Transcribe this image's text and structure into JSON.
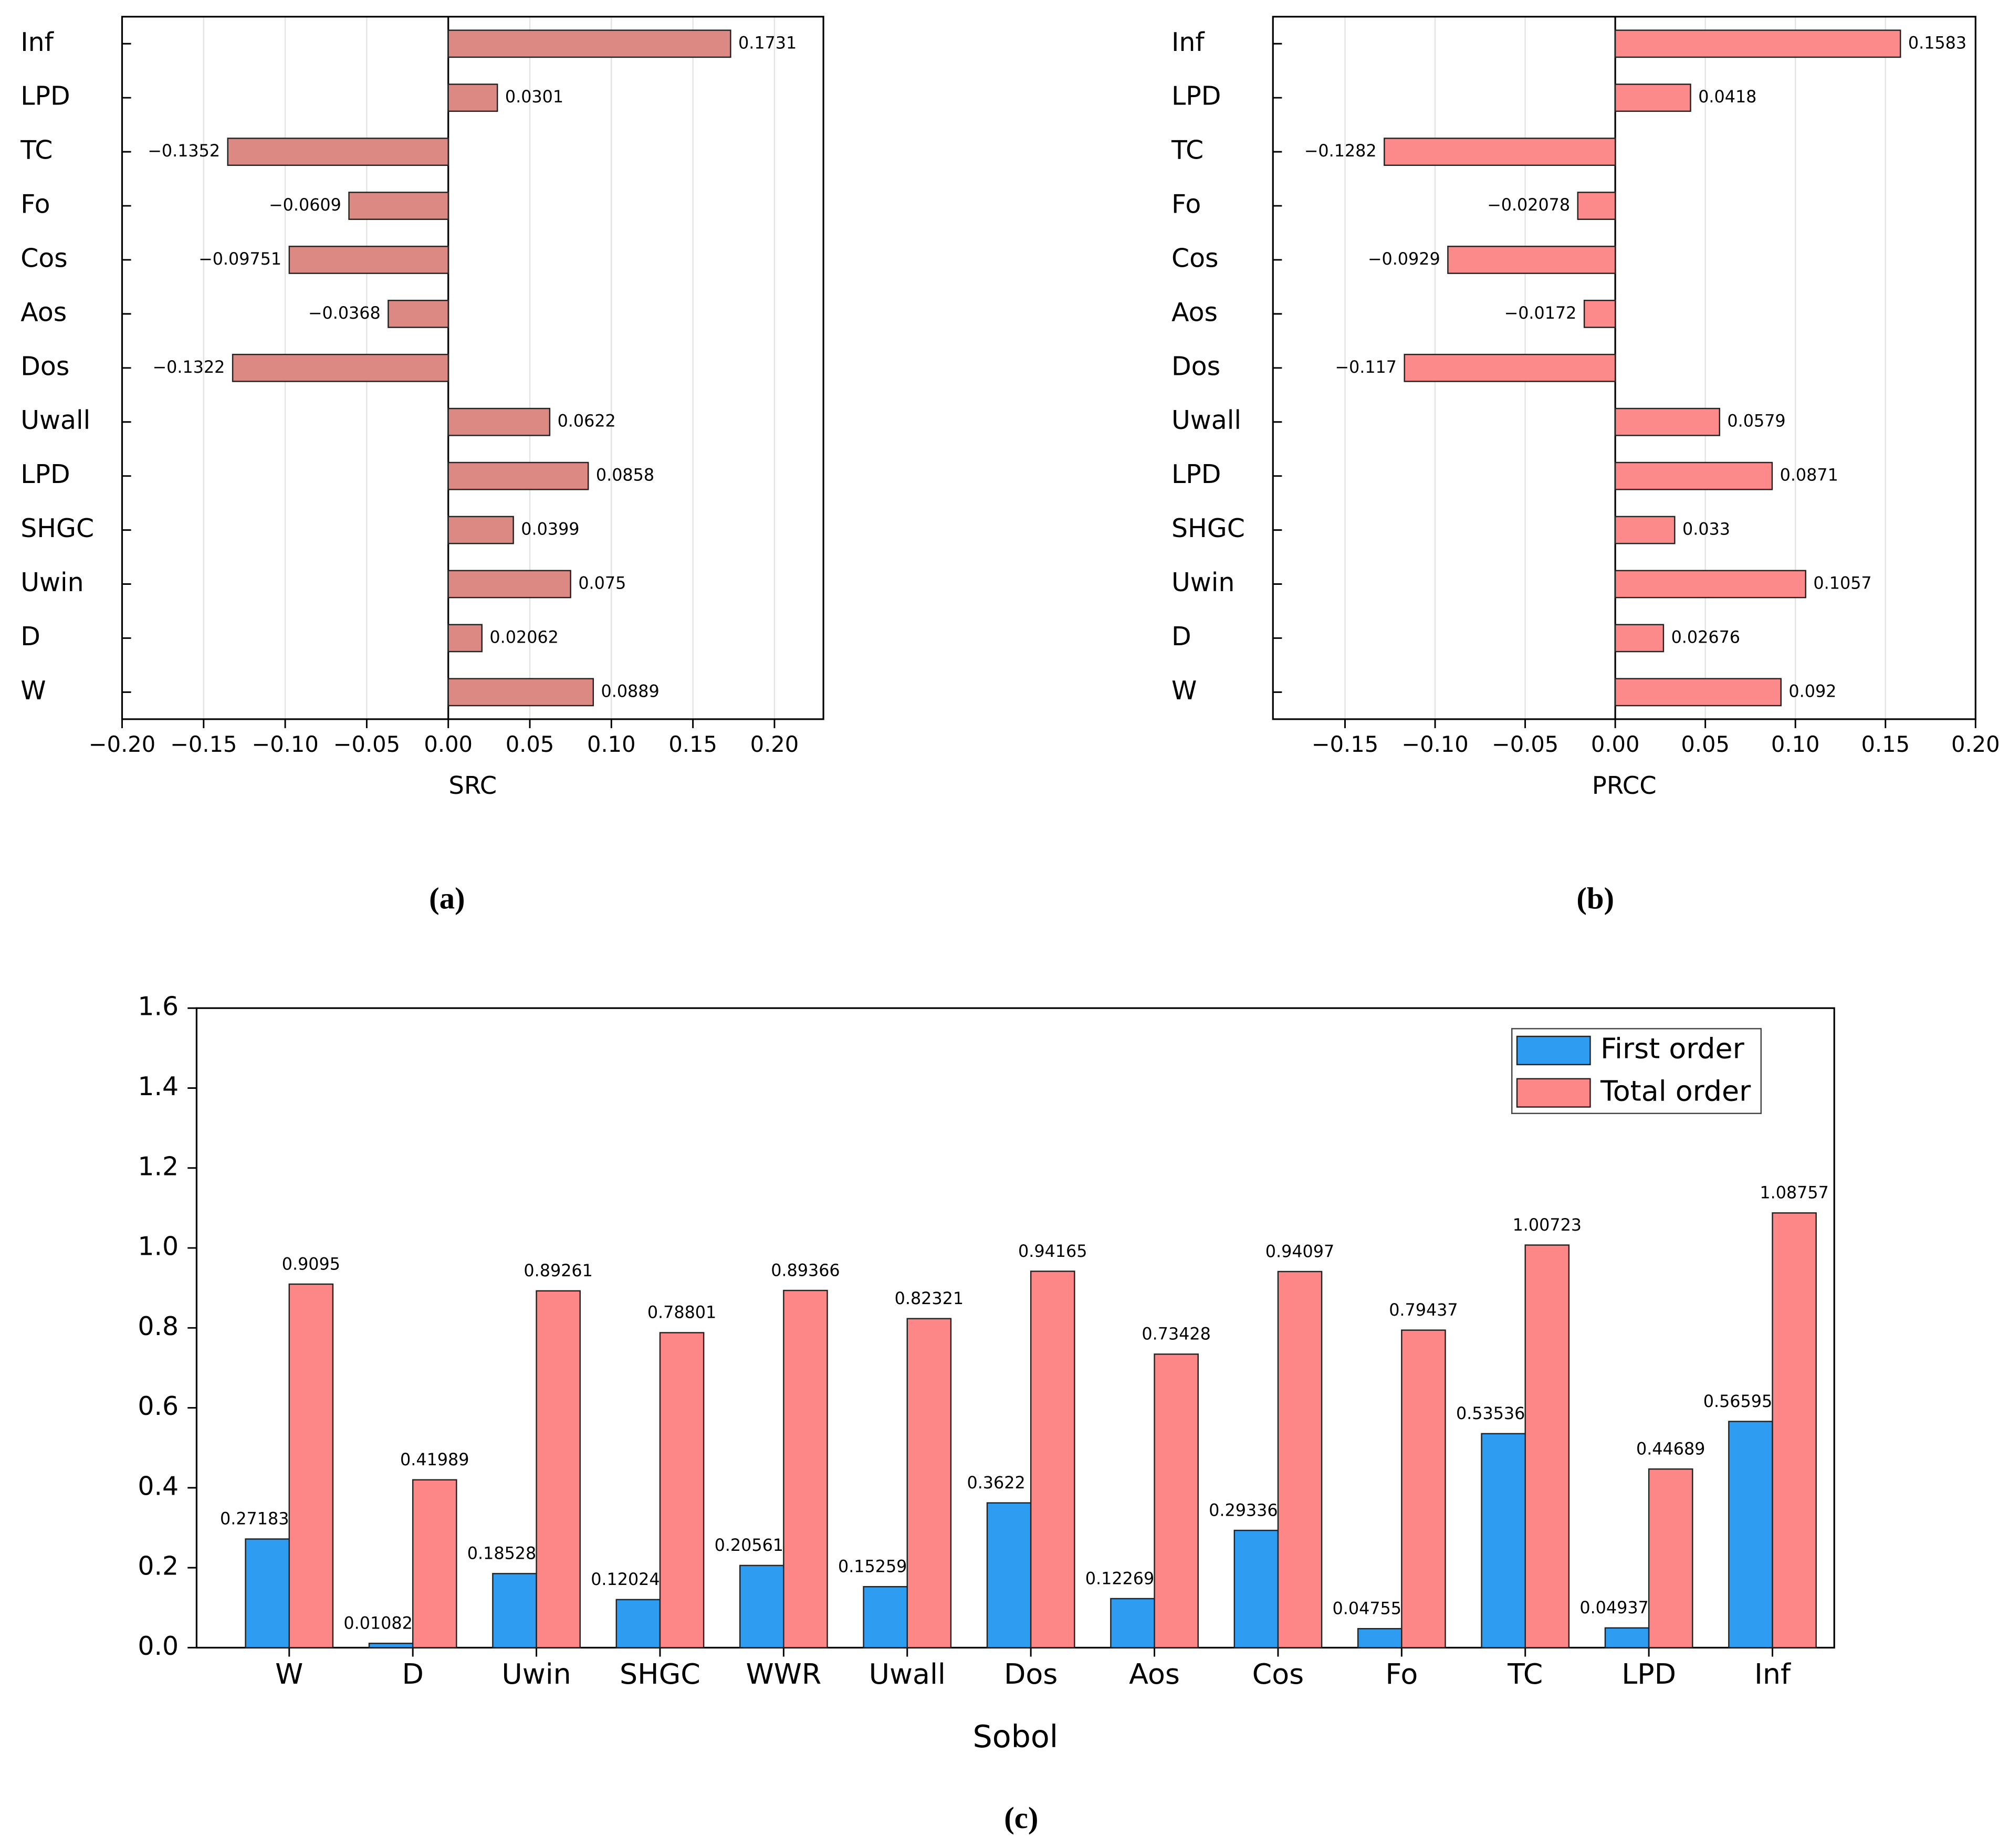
{
  "chart_data": [
    {
      "type": "bar",
      "orientation": "horizontal",
      "caption": "(a)",
      "x_label": "SRC",
      "color": "#dd8983",
      "grid": true,
      "categories": [
        "Inf",
        "LPD",
        "TC",
        "Fo",
        "Cos",
        "Aos",
        "Dos",
        "Uwall",
        "LPD",
        "SHGC",
        "Uwin",
        "D",
        "W"
      ],
      "values": [
        0.1731,
        0.0301,
        -0.1352,
        -0.0609,
        -0.09751,
        -0.0368,
        -0.1322,
        0.0622,
        0.0858,
        0.0399,
        0.075,
        0.02062,
        0.0889
      ],
      "value_labels": [
        "0.1731",
        "0.0301",
        "−0.1352",
        "−0.0609",
        "−0.09751",
        "−0.0368",
        "−0.1322",
        "0.0622",
        "0.0858",
        "0.0399",
        "0.075",
        "0.02062",
        "0.0889"
      ],
      "xlim": [
        -0.2,
        0.23
      ],
      "xticks": [
        {
          "value": -0.2,
          "label": "−0.20"
        },
        {
          "value": -0.15,
          "label": "−0.15"
        },
        {
          "value": -0.1,
          "label": "−0.10"
        },
        {
          "value": -0.05,
          "label": "−0.05"
        },
        {
          "value": 0,
          "label": "0.00"
        },
        {
          "value": 0.05,
          "label": "0.05"
        },
        {
          "value": 0.1,
          "label": "0.10"
        },
        {
          "value": 0.15,
          "label": "0.15"
        },
        {
          "value": 0.2,
          "label": "0.20"
        }
      ]
    },
    {
      "type": "bar",
      "orientation": "horizontal",
      "caption": "(b)",
      "x_label": "PRCC",
      "color": "#fc8a8a",
      "grid": true,
      "categories": [
        "Inf",
        "LPD",
        "TC",
        "Fo",
        "Cos",
        "Aos",
        "Dos",
        "Uwall",
        "LPD",
        "SHGC",
        "Uwin",
        "D",
        "W"
      ],
      "values": [
        0.1583,
        0.0418,
        -0.1282,
        -0.02078,
        -0.0929,
        -0.0172,
        -0.117,
        0.0579,
        0.0871,
        0.033,
        0.1057,
        0.02676,
        0.092
      ],
      "value_labels": [
        "0.1583",
        "0.0418",
        "−0.1282",
        "−0.02078",
        "−0.0929",
        "−0.0172",
        "−0.117",
        "0.0579",
        "0.0871",
        "0.033",
        "0.1057",
        "0.02676",
        "0.092"
      ],
      "xlim": [
        -0.19,
        0.2
      ],
      "xticks": [
        {
          "value": -0.15,
          "label": "−0.15"
        },
        {
          "value": -0.1,
          "label": "−0.10"
        },
        {
          "value": -0.05,
          "label": "−0.05"
        },
        {
          "value": 0,
          "label": "0.00"
        },
        {
          "value": 0.05,
          "label": "0.05"
        },
        {
          "value": 0.1,
          "label": "0.10"
        },
        {
          "value": 0.15,
          "label": "0.15"
        },
        {
          "value": 0.2,
          "label": "0.20"
        }
      ]
    },
    {
      "type": "bar",
      "orientation": "vertical",
      "caption": "(c)",
      "x_label": "Sobol",
      "legend": "upper right",
      "categories": [
        "W",
        "D",
        "Uwin",
        "SHGC",
        "WWR",
        "Uwall",
        "Dos",
        "Aos",
        "Cos",
        "Fo",
        "TC",
        "LPD",
        "Inf"
      ],
      "series": [
        {
          "name": "First order",
          "color": "#2e9cf1",
          "values": [
            0.27183,
            0.01082,
            0.18528,
            0.12024,
            0.20561,
            0.15259,
            0.3622,
            0.12269,
            0.29336,
            0.04755,
            0.53536,
            0.04937,
            0.56595
          ]
        },
        {
          "name": "Total order",
          "color": "#fd8686",
          "values": [
            0.9095,
            0.41989,
            0.89261,
            0.78801,
            0.89366,
            0.82321,
            0.94165,
            0.73428,
            0.94097,
            0.79437,
            1.00723,
            0.44689,
            1.08757
          ]
        }
      ],
      "ylim": [
        0,
        1.6
      ],
      "yticks": [
        {
          "value": 0,
          "label": "0.0"
        },
        0.2,
        0.4,
        0.6,
        0.8,
        {
          "value": 1,
          "label": "1.0"
        },
        1.2,
        1.4,
        1.6
      ]
    }
  ]
}
